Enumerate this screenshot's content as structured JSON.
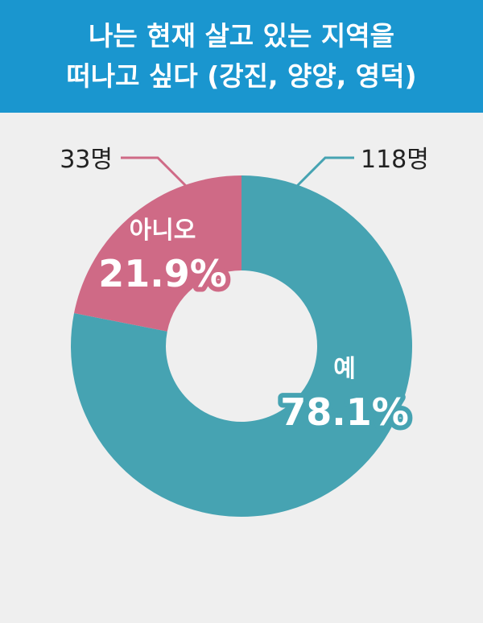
{
  "header": {
    "title_line1": "나는 현재 살고 있는 지역을",
    "title_line2": "떠나고 싶다 (강진, 양양, 영덕)"
  },
  "colors": {
    "header_bg": "#1a96cf",
    "yes": "#46a3b2",
    "no": "#cf6a86",
    "background": "#efefef"
  },
  "chart_data": {
    "type": "pie",
    "donut": true,
    "title": "나는 현재 살고 있는 지역을 떠나고 싶다 (강진, 양양, 영덕)",
    "slices": [
      {
        "label": "예",
        "percent": 78.1,
        "percent_label": "78.1%",
        "count": 118,
        "count_label": "118명",
        "color": "#46a3b2"
      },
      {
        "label": "아니오",
        "percent": 21.9,
        "percent_label": "21.9%",
        "count": 33,
        "count_label": "33명",
        "color": "#cf6a86"
      }
    ]
  }
}
